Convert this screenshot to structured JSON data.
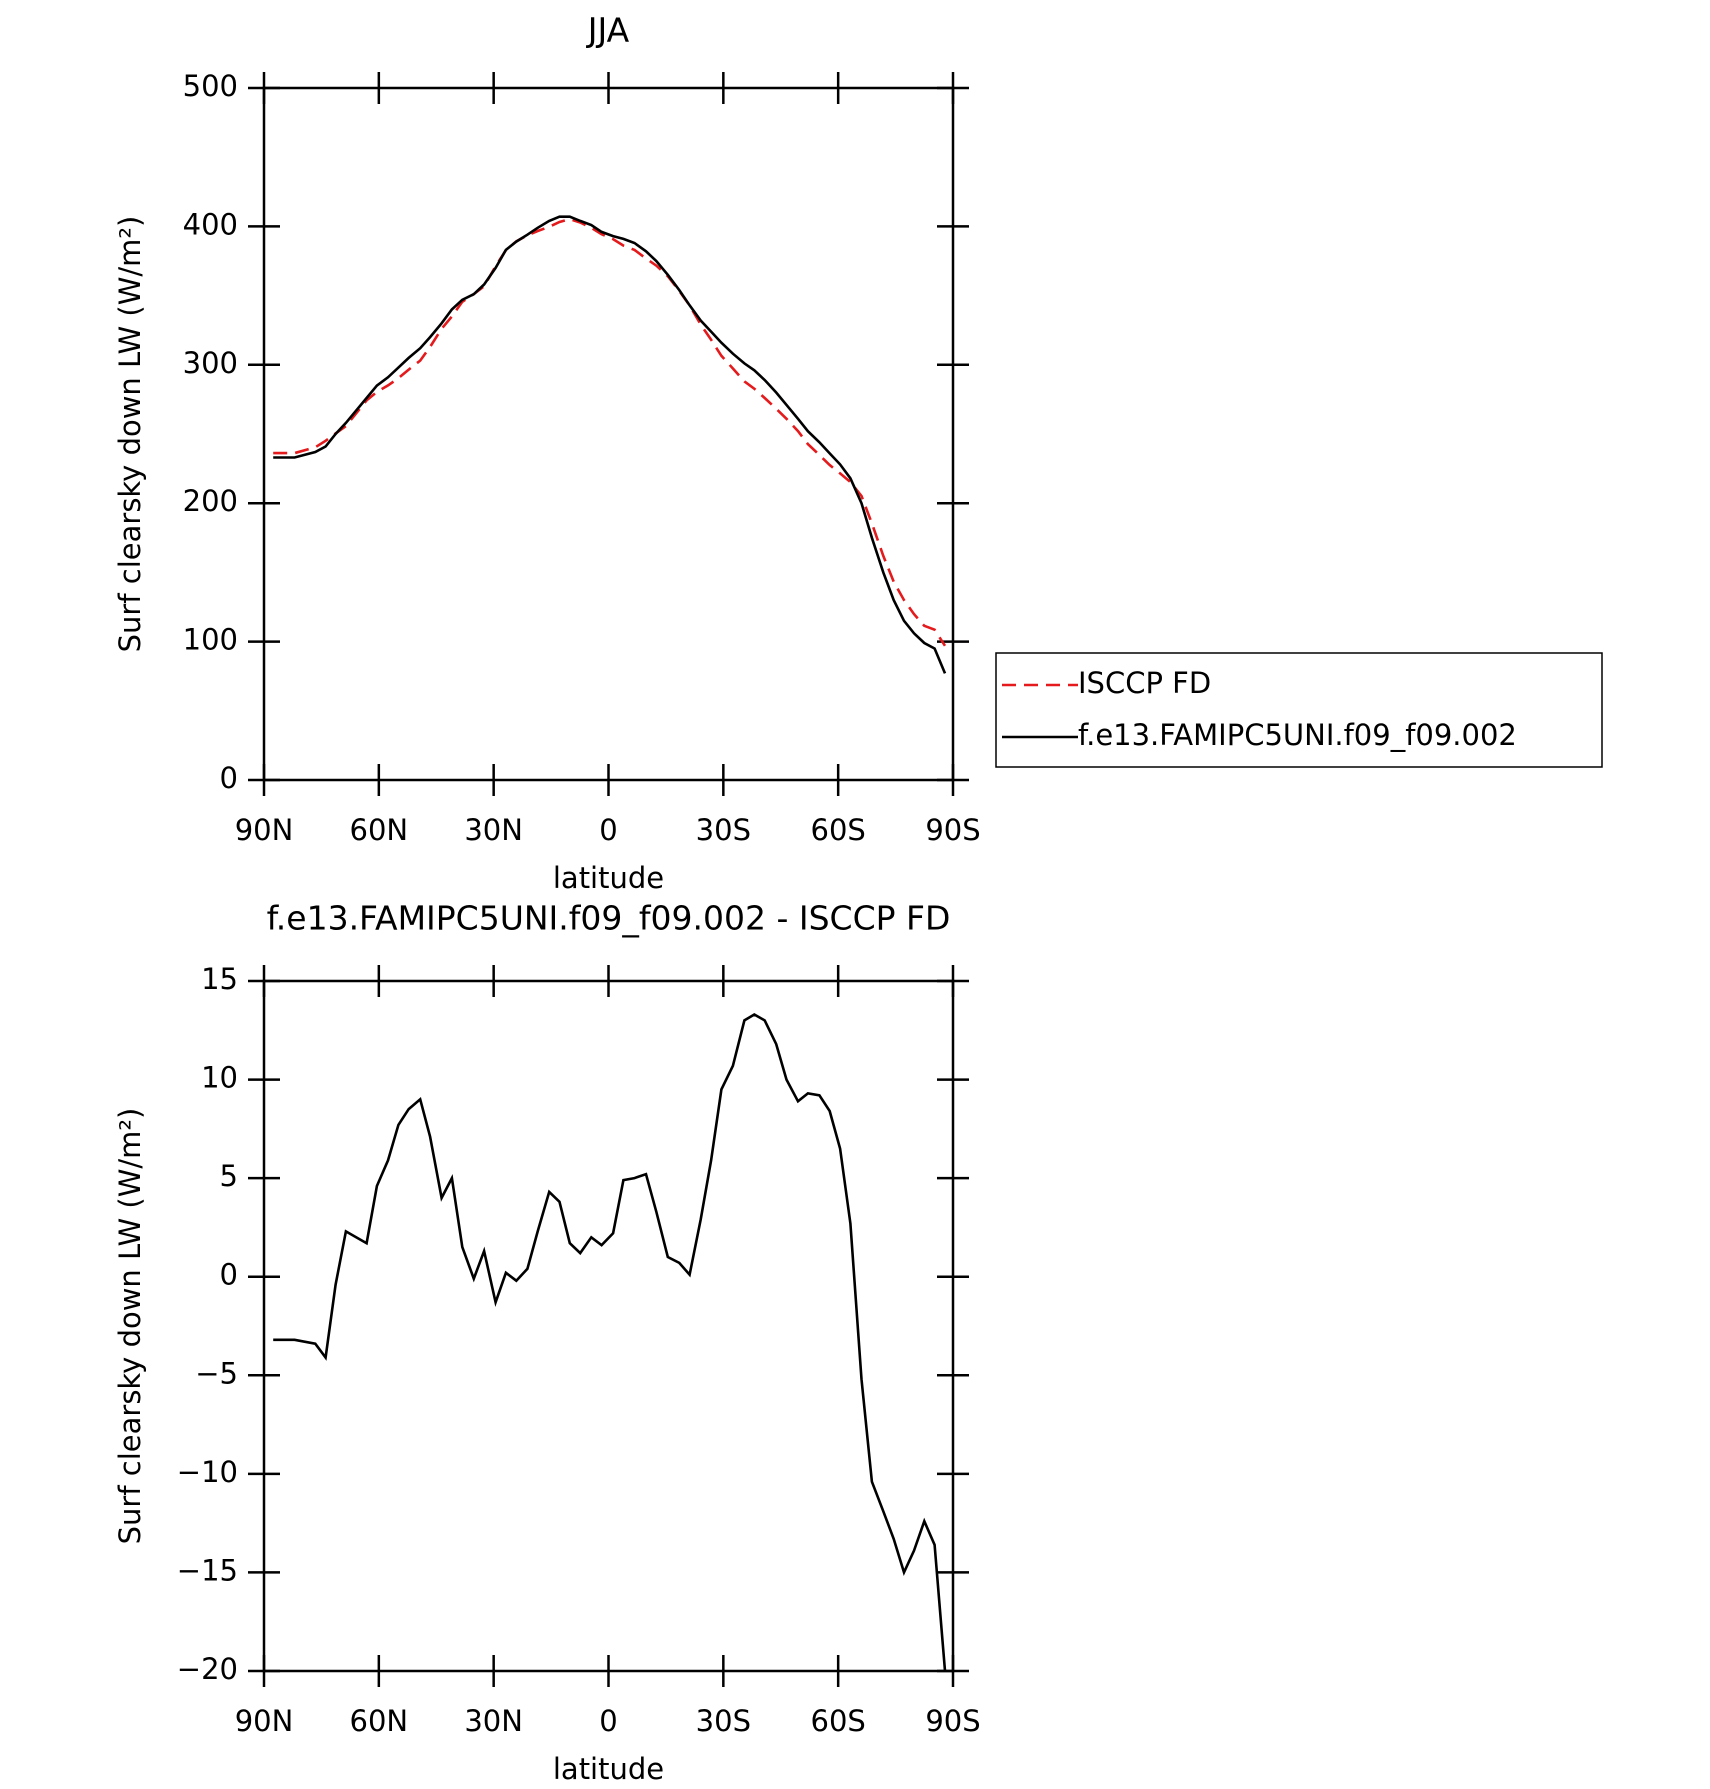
{
  "chart_data": [
    {
      "type": "line",
      "title": "JJA",
      "xlabel": "latitude",
      "ylabel": "Surf clearsky down LW (W/m²)",
      "x": [
        87.6,
        82.0,
        76.6,
        73.9,
        71.3,
        68.6,
        63.2,
        60.5,
        57.6,
        54.9,
        52.2,
        49.2,
        46.6,
        43.6,
        40.9,
        38.2,
        35.2,
        32.5,
        29.5,
        26.8,
        24.1,
        21.2,
        18.5,
        15.5,
        12.8,
        10.1,
        7.4,
        4.5,
        1.8,
        -1.2,
        -3.9,
        -6.8,
        -9.8,
        -12.5,
        -15.5,
        -18.5,
        -21.2,
        -24.1,
        -26.8,
        -29.5,
        -32.5,
        -35.5,
        -38.1,
        -40.8,
        -43.8,
        -46.5,
        -49.5,
        -52.1,
        -55.1,
        -57.8,
        -60.5,
        -63.2,
        -66.1,
        -68.8,
        -71.8,
        -74.5,
        -77.2,
        -79.8,
        -82.5,
        -85.2,
        -87.9
      ],
      "series": [
        {
          "name": "ISCCP FD",
          "color": "#e41a1c",
          "linestyle": "dashed",
          "values": [
            236.2,
            236.2,
            240.4,
            245.1,
            250.4,
            255.7,
            274.3,
            280.4,
            285.1,
            290.3,
            296.5,
            303,
            312.9,
            326,
            335,
            345.5,
            351.1,
            356.7,
            371.3,
            382.8,
            389.2,
            393.6,
            396.7,
            399.7,
            403.2,
            405.3,
            402.8,
            399,
            394.4,
            390.8,
            386.1,
            383,
            376.8,
            371.7,
            364,
            353.3,
            342.9,
            329.1,
            318.1,
            306.5,
            297.3,
            288,
            282.7,
            276,
            268.2,
            261,
            252.1,
            242.7,
            234.8,
            227.6,
            221.5,
            215.3,
            205.2,
            185.4,
            161.9,
            143.3,
            130,
            119.9,
            111.4,
            108.6,
            97
          ]
        },
        {
          "name": "f.e13.FAMIPC5UNI.f09_f09.002",
          "color": "#000000",
          "linestyle": "solid",
          "values": [
            233,
            233,
            237,
            241,
            250,
            258,
            276,
            285,
            291,
            298,
            305,
            312,
            320,
            330,
            340,
            347,
            351,
            358,
            370,
            383,
            389,
            394,
            399,
            404,
            407,
            407,
            404,
            401,
            396,
            393,
            391,
            388,
            382,
            375,
            365,
            354,
            343,
            332,
            324,
            316,
            308,
            301,
            296,
            289,
            280,
            271,
            261,
            252,
            244,
            236,
            228,
            218,
            200,
            175,
            150,
            130,
            115,
            106,
            99,
            95,
            77
          ]
        }
      ],
      "xlim": [
        90,
        -90
      ],
      "xticks": [
        {
          "value": 90,
          "label": "90N"
        },
        {
          "value": 60,
          "label": "60N"
        },
        {
          "value": 30,
          "label": "30N"
        },
        0,
        {
          "value": -30,
          "label": "30S"
        },
        {
          "value": -60,
          "label": "60S"
        },
        {
          "value": -90,
          "label": "90S"
        }
      ],
      "ylim": [
        0,
        500
      ],
      "yticks": [
        0,
        100,
        200,
        300,
        400,
        500
      ],
      "legend": "right"
    },
    {
      "type": "line",
      "title": "f.e13.FAMIPC5UNI.f09_f09.002 - ISCCP FD",
      "xlabel": "latitude",
      "ylabel": "Surf clearsky down LW (W/m²)",
      "x": [
        87.6,
        82.0,
        76.6,
        73.9,
        71.3,
        68.6,
        63.2,
        60.5,
        57.6,
        54.9,
        52.2,
        49.2,
        46.6,
        43.6,
        40.9,
        38.2,
        35.2,
        32.5,
        29.5,
        26.8,
        24.1,
        21.2,
        18.5,
        15.5,
        12.8,
        10.1,
        7.4,
        4.5,
        1.8,
        -1.2,
        -3.9,
        -6.8,
        -9.8,
        -12.5,
        -15.5,
        -18.5,
        -21.2,
        -24.1,
        -26.8,
        -29.5,
        -32.5,
        -35.5,
        -38.1,
        -40.8,
        -43.8,
        -46.5,
        -49.5,
        -52.1,
        -55.1,
        -57.8,
        -60.5,
        -63.2,
        -66.1,
        -68.8,
        -71.8,
        -74.5,
        -77.2,
        -79.8,
        -82.5,
        -85.2,
        -87.9
      ],
      "series": [
        {
          "color": "#000000",
          "linestyle": "solid",
          "values": [
            -3.2,
            -3.2,
            -3.4,
            -4.1,
            -0.4,
            2.3,
            1.7,
            4.6,
            5.9,
            7.7,
            8.5,
            9.0,
            7.1,
            4.0,
            5.0,
            1.5,
            -0.1,
            1.3,
            -1.3,
            0.2,
            -0.2,
            0.4,
            2.3,
            4.3,
            3.8,
            1.7,
            1.2,
            2.0,
            1.6,
            2.2,
            4.9,
            5.0,
            5.2,
            3.3,
            1.0,
            0.7,
            0.1,
            2.9,
            5.9,
            9.5,
            10.7,
            13.0,
            13.3,
            13.0,
            11.8,
            10.0,
            8.9,
            9.3,
            9.2,
            8.4,
            6.5,
            2.7,
            -5.2,
            -10.4,
            -11.9,
            -13.3,
            -15.0,
            -13.9,
            -12.4,
            -13.6,
            -20
          ]
        }
      ],
      "xlim": [
        90,
        -90
      ],
      "xticks": [
        {
          "value": 90,
          "label": "90N"
        },
        {
          "value": 60,
          "label": "60N"
        },
        {
          "value": 30,
          "label": "30N"
        },
        0,
        {
          "value": -30,
          "label": "30S"
        },
        {
          "value": -60,
          "label": "60S"
        },
        {
          "value": -90,
          "label": "90S"
        }
      ],
      "ylim": [
        -20,
        15
      ],
      "yticks": [
        {
          "value": -20,
          "label": "−20"
        },
        {
          "value": -15,
          "label": "−15"
        },
        {
          "value": -10,
          "label": "−10"
        },
        {
          "value": -5,
          "label": "−5"
        },
        0,
        5,
        10,
        15
      ]
    }
  ]
}
